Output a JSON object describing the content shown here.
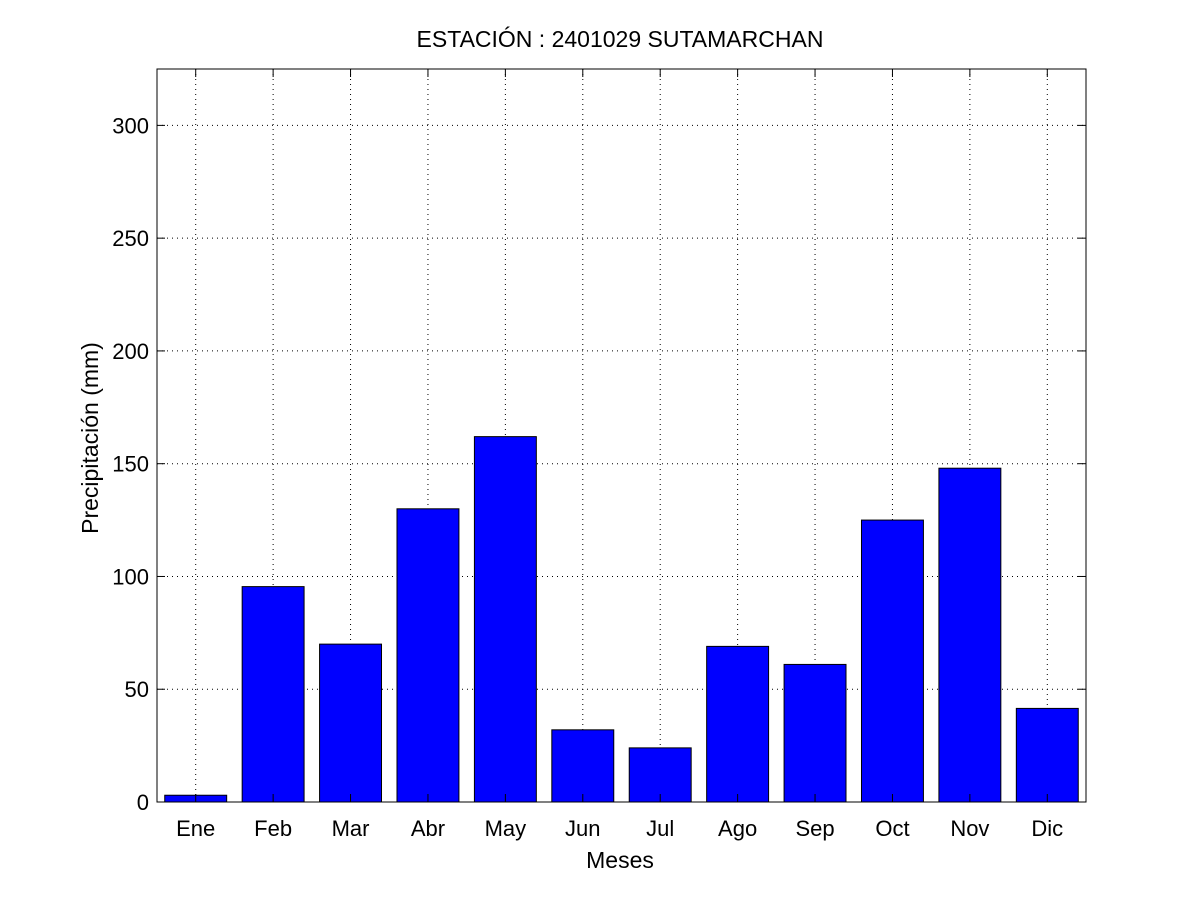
{
  "chart_data": {
    "type": "bar",
    "title": "ESTACIÓN :  2401029  SUTAMARCHAN",
    "xlabel": "Meses",
    "ylabel": "Precipitación (mm)",
    "categories": [
      "Ene",
      "Feb",
      "Mar",
      "Abr",
      "May",
      "Jun",
      "Jul",
      "Ago",
      "Sep",
      "Oct",
      "Nov",
      "Dic"
    ],
    "values": [
      3,
      95.5,
      70,
      130,
      162,
      32,
      24,
      69,
      61,
      125,
      148,
      41.5
    ],
    "ylim": [
      0,
      325
    ],
    "yticks": [
      0,
      50,
      100,
      150,
      200,
      250,
      300
    ],
    "grid": true,
    "bar_color": "#0000ff"
  }
}
